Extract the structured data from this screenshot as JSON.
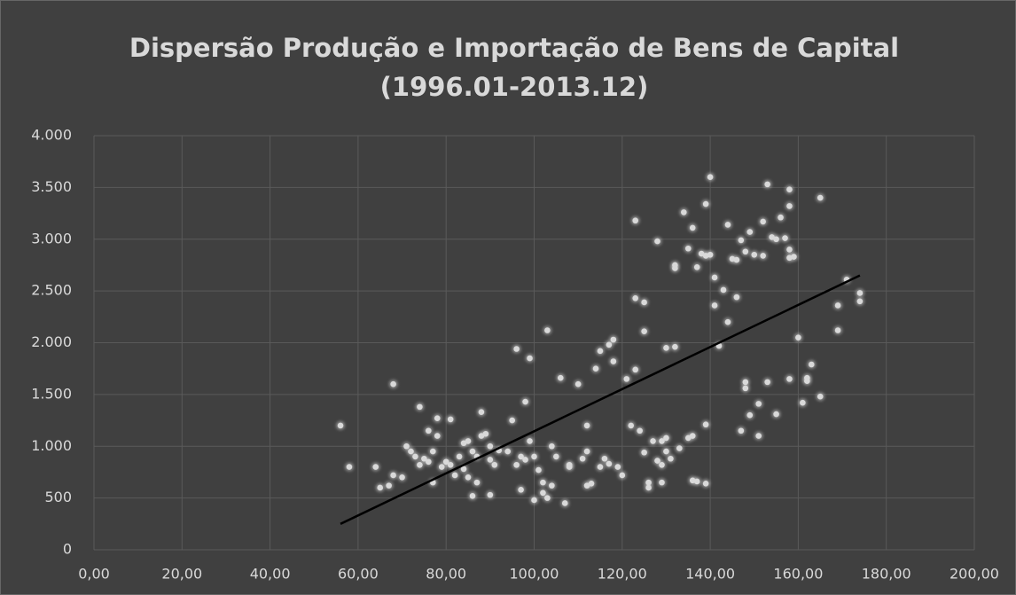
{
  "chart_data": {
    "type": "scatter",
    "title": [
      "Dispersão Produção e Importação de Bens de Capital",
      "(1996.01-2013.12)"
    ],
    "color": "#d9d9d9",
    "grid": true,
    "x": [
      56,
      58,
      64,
      65,
      67,
      68,
      68,
      70,
      71,
      72,
      73,
      74,
      74,
      75,
      76,
      76,
      77,
      77,
      78,
      78,
      79,
      80,
      81,
      81,
      82,
      83,
      84,
      84,
      85,
      85,
      86,
      86,
      87,
      87,
      88,
      88,
      89,
      90,
      90,
      90,
      91,
      92,
      94,
      95,
      96,
      96,
      97,
      97,
      98,
      98,
      99,
      99,
      100,
      100,
      101,
      102,
      102,
      103,
      103,
      104,
      104,
      105,
      106,
      107,
      108,
      108,
      110,
      111,
      112,
      112,
      112,
      113,
      114,
      115,
      115,
      116,
      117,
      117,
      118,
      118,
      119,
      120,
      121,
      122,
      123,
      123,
      123,
      124,
      125,
      125,
      125,
      126,
      126,
      127,
      128,
      128,
      129,
      129,
      129,
      130,
      130,
      130,
      131,
      132,
      132,
      132,
      133,
      134,
      135,
      135,
      136,
      136,
      136,
      137,
      137,
      138,
      139,
      139,
      139,
      139,
      140,
      140,
      141,
      141,
      142,
      143,
      144,
      144,
      145,
      146,
      146,
      147,
      147,
      148,
      148,
      148,
      149,
      149,
      150,
      151,
      151,
      152,
      152,
      153,
      153,
      154,
      155,
      155,
      156,
      157,
      158,
      158,
      158,
      158,
      158,
      159,
      160,
      161,
      162,
      162,
      163,
      165,
      165,
      169,
      169,
      171,
      174,
      174
    ],
    "y": [
      1200,
      800,
      800,
      600,
      620,
      1600,
      720,
      700,
      1000,
      950,
      900,
      1380,
      820,
      880,
      1150,
      850,
      650,
      950,
      1100,
      1270,
      800,
      850,
      1260,
      820,
      720,
      900,
      1030,
      780,
      700,
      1050,
      950,
      520,
      650,
      900,
      1330,
      1100,
      1120,
      1000,
      870,
      530,
      820,
      960,
      950,
      1250,
      1940,
      820,
      900,
      580,
      1430,
      870,
      1850,
      1050,
      480,
      900,
      770,
      650,
      550,
      500,
      2120,
      1000,
      620,
      900,
      1660,
      450,
      820,
      800,
      1600,
      880,
      620,
      1200,
      950,
      640,
      1750,
      800,
      1920,
      880,
      1980,
      830,
      2030,
      1820,
      800,
      720,
      1650,
      1200,
      2430,
      1740,
      3180,
      1150,
      2390,
      2110,
      940,
      650,
      600,
      1050,
      2980,
      860,
      650,
      820,
      1050,
      1080,
      950,
      1950,
      880,
      1960,
      2750,
      2720,
      980,
      3260,
      2910,
      1080,
      1100,
      3110,
      670,
      660,
      2730,
      2860,
      640,
      1210,
      3340,
      2840,
      2850,
      3600,
      2630,
      2360,
      1970,
      2510,
      3140,
      2200,
      2810,
      2800,
      2440,
      1150,
      2990,
      1620,
      1560,
      2880,
      1300,
      3070,
      2850,
      1410,
      1100,
      3170,
      2840,
      1620,
      3530,
      3020,
      3000,
      1310,
      3210,
      3010,
      2820,
      2900,
      1650,
      3320,
      3480,
      2830,
      2050,
      1420,
      1660,
      1630,
      1790,
      3400,
      1480,
      2120,
      2360,
      2610,
      2480,
      2400
    ],
    "trendline": {
      "x": [
        56,
        174
      ],
      "y": [
        250,
        2650
      ],
      "color": "#000000"
    },
    "xlim": [
      0,
      200
    ],
    "xticks": [
      {
        "value": 0,
        "label": "0,00"
      },
      {
        "value": 20,
        "label": "20,00"
      },
      {
        "value": 40,
        "label": "40,00"
      },
      {
        "value": 60,
        "label": "60,00"
      },
      {
        "value": 80,
        "label": "80,00"
      },
      {
        "value": 100,
        "label": "100,00"
      },
      {
        "value": 120,
        "label": "120,00"
      },
      {
        "value": 140,
        "label": "140,00"
      },
      {
        "value": 160,
        "label": "160,00"
      },
      {
        "value": 180,
        "label": "180,00"
      },
      {
        "value": 200,
        "label": "200,00"
      }
    ],
    "ylim": [
      0,
      4000
    ],
    "yticks": [
      0,
      500,
      {
        "value": 1000,
        "label": "1.000"
      },
      {
        "value": 1500,
        "label": "1.500"
      },
      {
        "value": 2000,
        "label": "2.000"
      },
      {
        "value": 2500,
        "label": "2.500"
      },
      {
        "value": 3000,
        "label": "3.000"
      },
      {
        "value": 3500,
        "label": "3.500"
      },
      {
        "value": 4000,
        "label": "4.000"
      }
    ]
  }
}
